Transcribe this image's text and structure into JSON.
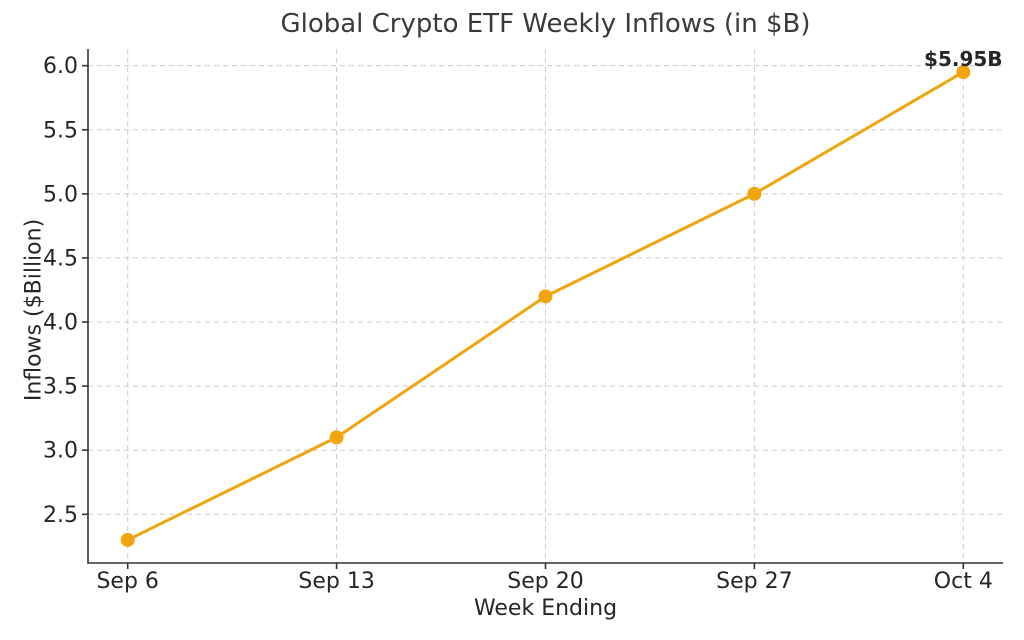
{
  "chart_data": {
    "type": "line",
    "title": "Global Crypto ETF Weekly Inflows (in $B)",
    "xlabel": "Week Ending",
    "ylabel": "Inflows ($Billion)",
    "categories": [
      "Sep 6",
      "Sep 13",
      "Sep 20",
      "Sep 27",
      "Oct 4"
    ],
    "values": [
      2.3,
      3.1,
      4.2,
      5.0,
      5.95
    ],
    "ytick_labels": [
      "2.5",
      "3.0",
      "3.5",
      "4.0",
      "4.5",
      "5.0",
      "5.5",
      "6.0"
    ],
    "yticks": [
      2.5,
      3.0,
      3.5,
      4.0,
      4.5,
      5.0,
      5.5,
      6.0
    ],
    "ylim": [
      2.12,
      6.13
    ],
    "xlim_index": [
      -0.19,
      4.19
    ],
    "grid": true,
    "grid_style": "dashed",
    "legend": "none",
    "annotation": {
      "text": "$5.95B",
      "point_index": 4
    },
    "line_color": "#F0A50E",
    "marker_color": "#F0A50E",
    "grid_color": "#CCCCCC",
    "axis_color": "#333333",
    "tick_text_color": "#262626",
    "title_color": "#3A3A3A",
    "background": "#FFFFFF"
  }
}
